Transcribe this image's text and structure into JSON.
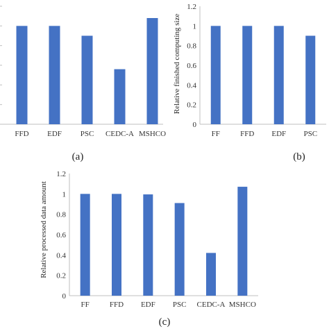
{
  "colors": {
    "bar": "#4472C4",
    "axis": "#bfbfbf",
    "grid": "#d9d9d9"
  },
  "chart_data": [
    {
      "panel": "(a)",
      "type": "bar",
      "categories": [
        "FFD",
        "EDF",
        "PSC",
        "CEDC-A",
        "MSHCO"
      ],
      "category_labels": [
        "FFD",
        "EDF",
        "PSC",
        "CEDC-A",
        "MSHCO"
      ],
      "values": [
        1.0,
        1.0,
        0.9,
        0.56,
        1.08
      ],
      "ylim": [
        0,
        1.2
      ],
      "show_y_axis": false,
      "ylabel": "",
      "title": ""
    },
    {
      "panel": "(b)",
      "type": "bar",
      "categories": [
        "FF",
        "FFD",
        "EDF",
        "PSC"
      ],
      "category_labels": [
        "FF",
        "FFD",
        "EDF",
        "PSC"
      ],
      "values": [
        1.0,
        1.0,
        1.0,
        0.9
      ],
      "ylim": [
        0,
        1.2
      ],
      "yticks": [
        "0",
        "0.2",
        "0.4",
        "0.6",
        "0.8",
        "1",
        "1.2"
      ],
      "show_y_axis": true,
      "ylabel": "Relative finished computing size",
      "title": ""
    },
    {
      "panel": "(c)",
      "type": "bar",
      "categories": [
        "FF",
        "FFD",
        "EDF",
        "PSC",
        "CEDC-A",
        "MSHCO"
      ],
      "category_labels": [
        "FF",
        "FFD",
        "EDF",
        "PSC",
        "CEDC-A",
        "MSHCO"
      ],
      "values": [
        1.0,
        1.0,
        0.995,
        0.91,
        0.42,
        1.07
      ],
      "ylim": [
        0,
        1.2
      ],
      "yticks": [
        "0",
        "0.2",
        "0.4",
        "0.6",
        "0.8",
        "1",
        "1.2"
      ],
      "show_y_axis": true,
      "ylabel": "Relative processed data amount",
      "title": ""
    }
  ]
}
